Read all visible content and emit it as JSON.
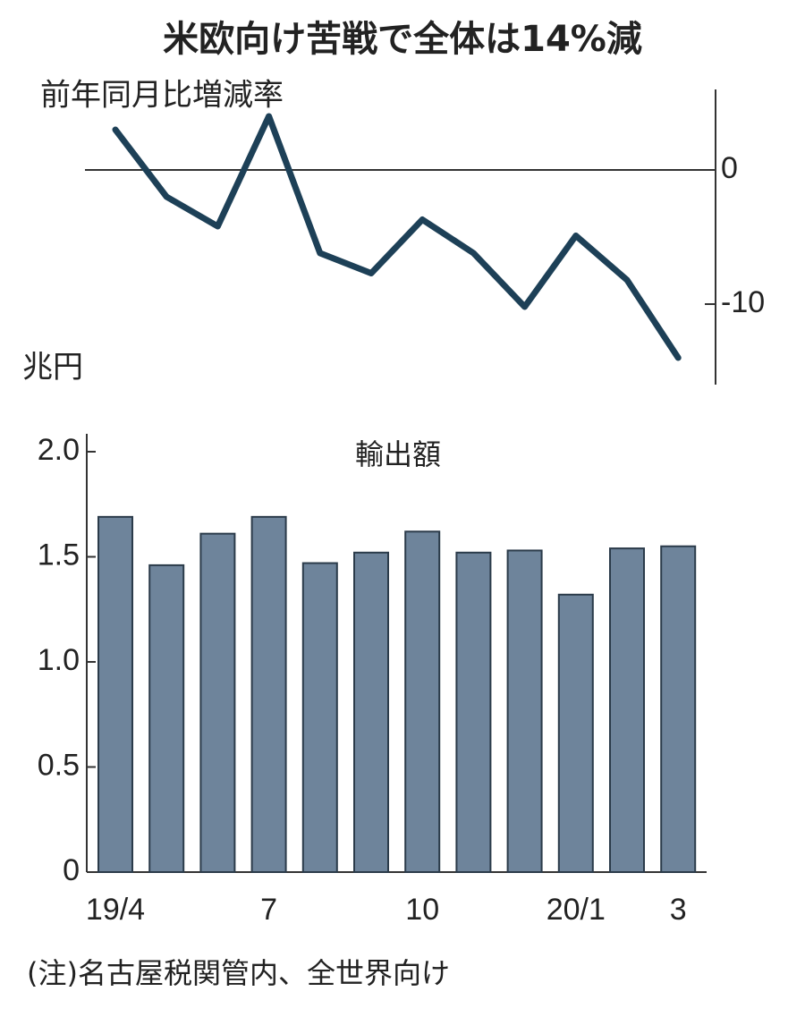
{
  "title": "米欧向け苦戦で全体は14%減",
  "note": "(注)名古屋税関管内、全世界向け",
  "chart_data": [
    {
      "type": "line",
      "y_label": "前年同月比増減率",
      "color": "#1d4057",
      "values": [
        3.0,
        -2.0,
        -4.2,
        4.0,
        -6.2,
        -7.7,
        -3.7,
        -6.2,
        -10.2,
        -4.9,
        -8.2,
        -14
      ],
      "ylim": [
        -16,
        6
      ],
      "yticks": [
        0,
        -10
      ],
      "axis_side": "right",
      "zero_line": true
    },
    {
      "type": "bar",
      "title": "輸出額",
      "y_label": "兆円",
      "color": "#6e849b",
      "edge_color": "#2b3b4a",
      "categories": [
        "19/4",
        null,
        null,
        "7",
        null,
        null,
        "10",
        null,
        null,
        "20/1",
        null,
        "3"
      ],
      "values": [
        1.69,
        1.46,
        1.61,
        1.69,
        1.47,
        1.52,
        1.62,
        1.52,
        1.53,
        1.32,
        1.54,
        1.55
      ],
      "ylim": [
        0,
        2.0
      ],
      "yticks": [
        0,
        0.5,
        {
          "value": 1.0,
          "label": "1.0"
        },
        1.5,
        {
          "value": 2.0,
          "label": "2.0"
        }
      ],
      "axis_side": "left"
    }
  ]
}
